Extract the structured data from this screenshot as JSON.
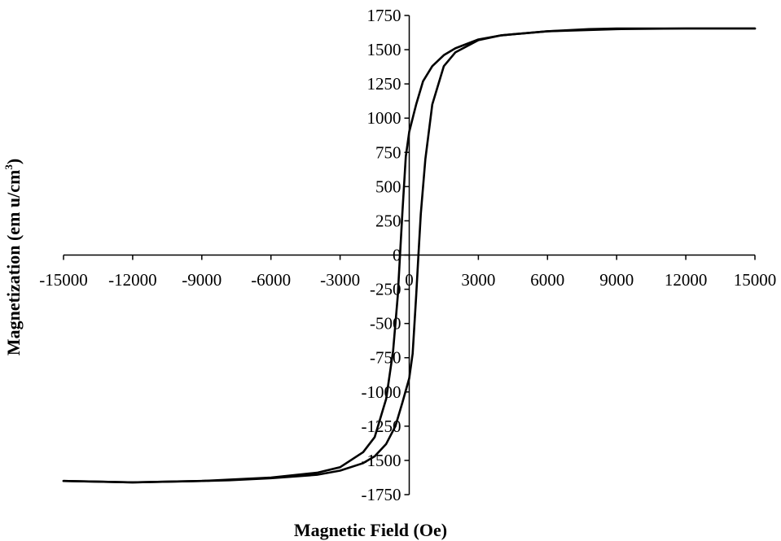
{
  "chart_data": {
    "type": "line",
    "xlabel": "Magnetic Field (Oe)",
    "ylabel_main": "Magnetization (em u/cm",
    "ylabel_sup": "3",
    "ylabel_close": ")",
    "xlim": [
      -15000,
      15000
    ],
    "ylim": [
      -1750,
      1750
    ],
    "x_ticks": [
      -15000,
      -12000,
      -9000,
      -6000,
      -3000,
      0,
      3000,
      6000,
      9000,
      12000,
      15000
    ],
    "x_tick_labels": [
      "-15000",
      "-12000",
      "-9000",
      "-6000",
      "-3000",
      "0",
      "3000",
      "6000",
      "9000",
      "12000",
      "15000"
    ],
    "y_ticks": [
      -1750,
      -1500,
      -1250,
      -1000,
      -750,
      -500,
      -250,
      0,
      250,
      500,
      750,
      1000,
      1250,
      1500,
      1750
    ],
    "y_tick_labels": [
      "-1750",
      "-1500",
      "-1250",
      "-1000",
      "-750",
      "-500",
      "-250",
      "0",
      "250",
      "500",
      "750",
      "1000",
      "1250",
      "1500",
      "1750"
    ],
    "series": [
      {
        "points": [
          [
            15000,
            1655
          ],
          [
            12000,
            1655
          ],
          [
            9000,
            1655
          ],
          [
            7800,
            1650
          ],
          [
            6000,
            1635
          ],
          [
            4000,
            1605
          ],
          [
            3000,
            1575
          ],
          [
            2000,
            1510
          ],
          [
            1500,
            1460
          ],
          [
            1000,
            1380
          ],
          [
            600,
            1270
          ],
          [
            300,
            1100
          ],
          [
            0,
            900
          ],
          [
            -150,
            720
          ],
          [
            -300,
            300
          ],
          [
            -400,
            0
          ],
          [
            -500,
            -300
          ],
          [
            -700,
            -700
          ],
          [
            -1000,
            -1050
          ],
          [
            -1500,
            -1330
          ],
          [
            -2000,
            -1440
          ],
          [
            -3000,
            -1550
          ],
          [
            -4000,
            -1590
          ],
          [
            -6000,
            -1625
          ],
          [
            -9000,
            -1650
          ],
          [
            -12000,
            -1660
          ],
          [
            -15000,
            -1650
          ]
        ]
      },
      {
        "points": [
          [
            -15000,
            -1650
          ],
          [
            -12000,
            -1660
          ],
          [
            -9000,
            -1650
          ],
          [
            -7800,
            -1645
          ],
          [
            -6000,
            -1630
          ],
          [
            -4000,
            -1605
          ],
          [
            -3000,
            -1575
          ],
          [
            -2000,
            -1520
          ],
          [
            -1500,
            -1470
          ],
          [
            -1000,
            -1380
          ],
          [
            -600,
            -1250
          ],
          [
            -300,
            -1080
          ],
          [
            0,
            -900
          ],
          [
            150,
            -720
          ],
          [
            300,
            -300
          ],
          [
            400,
            0
          ],
          [
            500,
            300
          ],
          [
            700,
            700
          ],
          [
            1000,
            1100
          ],
          [
            1500,
            1380
          ],
          [
            2000,
            1480
          ],
          [
            3000,
            1570
          ],
          [
            4000,
            1605
          ],
          [
            6000,
            1635
          ],
          [
            9000,
            1650
          ],
          [
            12000,
            1655
          ],
          [
            15000,
            1655
          ]
        ]
      }
    ]
  }
}
